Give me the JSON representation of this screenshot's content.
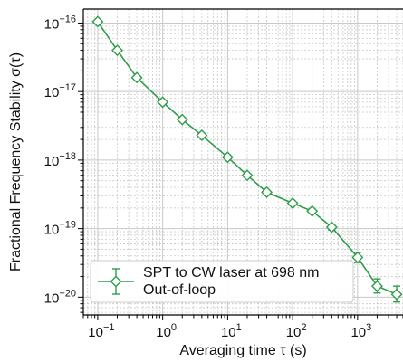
{
  "colors": {
    "series": "#2e9e4a",
    "grid": "#c8c8c8",
    "axis": "#000000"
  },
  "chart_data": {
    "type": "line",
    "xscale": "log",
    "yscale": "log",
    "xlabel": "Averaging time τ (s)",
    "ylabel": "Fractional Frequency Stability σ(τ)",
    "xlim": [
      0.06,
      5000
    ],
    "ylim": [
      5.5e-21,
      1.6e-16
    ],
    "grid": true,
    "xticks": [
      {
        "value": 0.1,
        "base": "10",
        "exp": "−1"
      },
      {
        "value": 1,
        "base": "10",
        "exp": "0"
      },
      {
        "value": 10,
        "base": "10",
        "exp": "1"
      },
      {
        "value": 100,
        "base": "10",
        "exp": "2"
      },
      {
        "value": 1000,
        "base": "10",
        "exp": "3"
      }
    ],
    "yticks": [
      {
        "value": 1e-16,
        "base": "10",
        "exp": "−16"
      },
      {
        "value": 1e-17,
        "base": "10",
        "exp": "−17"
      },
      {
        "value": 1e-18,
        "base": "10",
        "exp": "−18"
      },
      {
        "value": 1e-19,
        "base": "10",
        "exp": "−19"
      },
      {
        "value": 1e-20,
        "base": "10",
        "exp": "−20"
      }
    ],
    "legend": {
      "placement": "lower-left",
      "entries": [
        "SPT to CW laser at 698 nm",
        "Out-of-loop"
      ]
    },
    "series": [
      {
        "name": "SPT to CW laser at 698 nm",
        "marker": "diamond",
        "x": [
          0.1,
          0.2,
          0.4,
          1,
          2,
          4,
          10,
          20,
          40,
          100,
          200,
          400,
          1000,
          2000,
          4000
        ],
        "y": [
          1.05e-16,
          4e-17,
          1.6e-17,
          7e-18,
          3.9e-18,
          2.3e-18,
          1.1e-18,
          6e-19,
          3.4e-19,
          2.35e-19,
          1.8e-19,
          1.05e-19,
          3.8e-20,
          1.45e-20,
          1.1e-20
        ],
        "yerr_low": [
          1.02e-16,
          3.9e-17,
          1.56e-17,
          6.8e-18,
          3.8e-18,
          2.24e-18,
          1.07e-18,
          5.8e-19,
          3.3e-19,
          2.25e-19,
          1.7e-19,
          9.5e-20,
          3.2e-20,
          1.15e-20,
          8.5e-21
        ],
        "yerr_high": [
          1.08e-16,
          4.1e-17,
          1.64e-17,
          7.2e-18,
          4e-18,
          2.36e-18,
          1.13e-18,
          6.2e-19,
          3.5e-19,
          2.45e-19,
          1.9e-19,
          1.15e-19,
          4.5e-20,
          1.85e-20,
          1.45e-20
        ]
      }
    ]
  }
}
